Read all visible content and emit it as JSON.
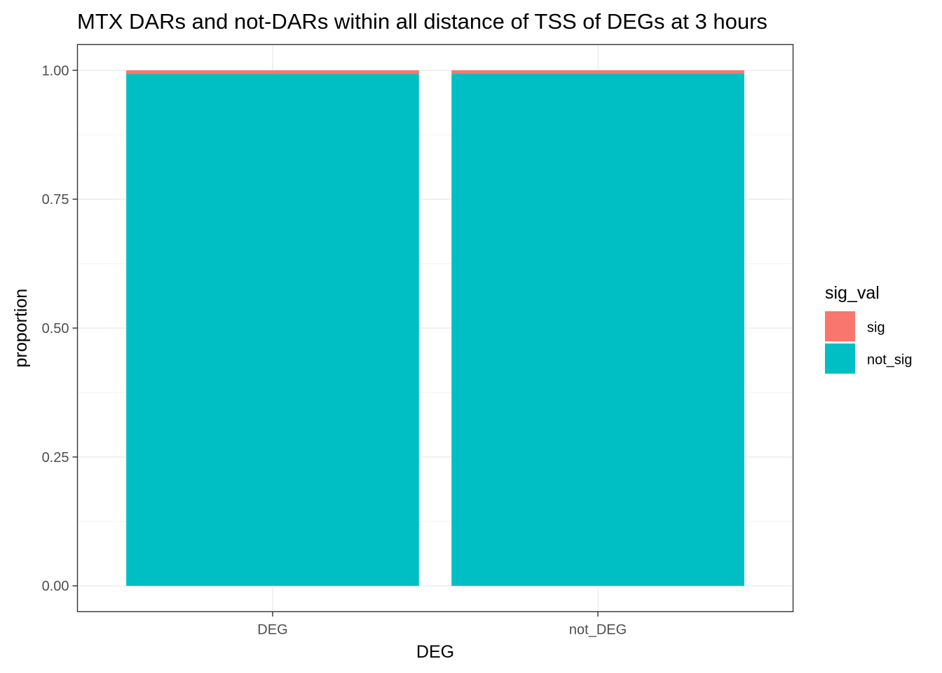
{
  "chart_data": {
    "type": "bar",
    "stacked": true,
    "title": "MTX DARs and not-DARs within all distance of TSS of DEGs at 3 hours",
    "xlabel": "DEG",
    "ylabel": "proportion",
    "categories": [
      "DEG",
      "not_DEG"
    ],
    "series": [
      {
        "name": "not_sig",
        "values": [
          0.993,
          0.994
        ],
        "color": "#00BFC4"
      },
      {
        "name": "sig",
        "values": [
          0.007,
          0.006
        ],
        "color": "#F8766D"
      }
    ],
    "ylim": [
      -0.05,
      1.05
    ],
    "yticks": [
      0.0,
      0.25,
      0.5,
      0.75,
      1.0
    ],
    "ytick_labels": [
      "0.00",
      "0.25",
      "0.50",
      "0.75",
      "1.00"
    ],
    "grid": true,
    "legend": {
      "title": "sig_val",
      "position": "right",
      "entries": [
        {
          "label": "sig",
          "color": "#F8766D"
        },
        {
          "label": "not_sig",
          "color": "#00BFC4"
        }
      ]
    }
  }
}
